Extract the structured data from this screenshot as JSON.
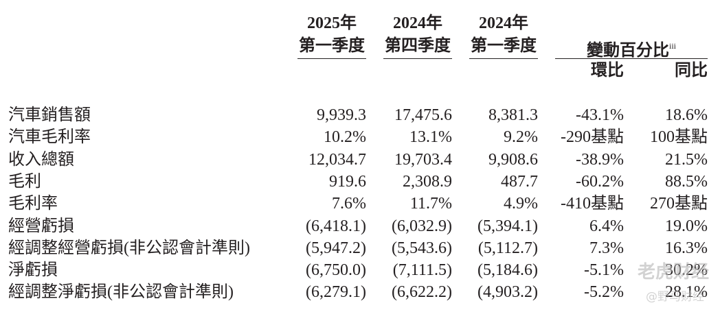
{
  "header": {
    "columns": [
      {
        "year": "2025年",
        "quarter": "第一季度"
      },
      {
        "year": "2024年",
        "quarter": "第四季度"
      },
      {
        "year": "2024年",
        "quarter": "第一季度"
      }
    ],
    "change": {
      "title": "變動百分比",
      "superscript": "iii",
      "sub": [
        "環比",
        "同比"
      ]
    }
  },
  "table": {
    "rows": [
      [
        "汽車銷售額",
        "9,939.3",
        "17,475.6",
        "8,381.3",
        "-43.1%",
        "18.6%"
      ],
      [
        "汽車毛利率",
        "10.2%",
        "13.1%",
        "9.2%",
        "-290基點",
        "100基點"
      ],
      [
        "收入總額",
        "12,034.7",
        "19,703.4",
        "9,908.6",
        "-38.9%",
        "21.5%"
      ],
      [
        "毛利",
        "919.6",
        "2,308.9",
        "487.7",
        "-60.2%",
        "88.5%"
      ],
      [
        "毛利率",
        "7.6%",
        "11.7%",
        "4.9%",
        "-410基點",
        "270基點"
      ],
      [
        "經營虧損",
        "(6,418.1)",
        "(6,032.9)",
        "(5,394.1)",
        "6.4%",
        "19.0%"
      ],
      [
        "經調整經營虧損(非公認會計準則)",
        "(5,947.2)",
        "(5,543.6)",
        "(5,112.7)",
        "7.3%",
        "16.3%"
      ],
      [
        "淨虧損",
        "(6,750.0)",
        "(7,111.5)",
        "(5,184.6)",
        "-5.1%",
        "30.2%"
      ],
      [
        "經調整淨虧損(非公認會計準則)",
        "(6,279.1)",
        "(6,622.2)",
        "(4,903.2)",
        "-5.2%",
        "28.1%"
      ]
    ]
  },
  "watermark": {
    "brand": "老虎财经",
    "handle": "@野马财经"
  }
}
